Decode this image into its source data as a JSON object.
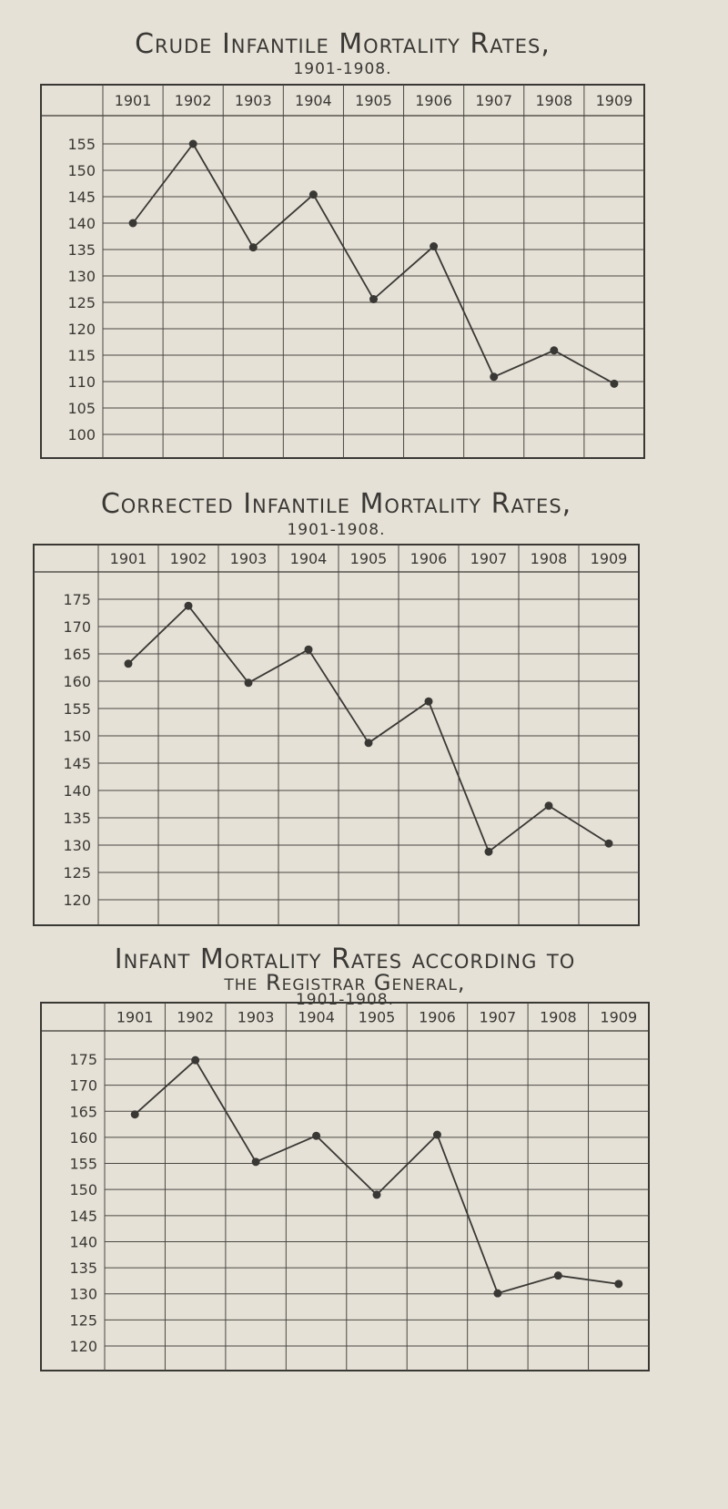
{
  "chart_data": [
    {
      "type": "line",
      "title": "Crude Infantile Mortality Rates,",
      "subtitle": "1901-1908.",
      "categories": [
        "1901",
        "1902",
        "1903",
        "1904",
        "1905",
        "1906",
        "1907",
        "1908",
        "1909"
      ],
      "values": [
        140,
        155,
        135.4,
        145.4,
        125.6,
        135.6,
        110.9,
        115.9,
        109.6
      ],
      "yticks": [
        155,
        150,
        145,
        140,
        135,
        130,
        125,
        120,
        115,
        110,
        105,
        100
      ],
      "ylim": [
        95,
        160
      ],
      "grid": true,
      "line_color": "#3a3835"
    },
    {
      "type": "line",
      "title": "Corrected Infantile Mortality Rates,",
      "subtitle": "1901-1908.",
      "categories": [
        "1901",
        "1902",
        "1903",
        "1904",
        "1905",
        "1906",
        "1907",
        "1908",
        "1909"
      ],
      "values": [
        163.2,
        173.8,
        159.7,
        165.8,
        148.7,
        156.3,
        128.8,
        137.2,
        130.3
      ],
      "yticks": [
        175,
        170,
        165,
        160,
        155,
        150,
        145,
        140,
        135,
        130,
        125,
        120
      ],
      "ylim": [
        115,
        180
      ],
      "grid": true,
      "line_color": "#3a3835"
    },
    {
      "type": "line",
      "title": "Infant Mortality Rates according to",
      "title2": "the Registrar General,",
      "subtitle": "1901-1908.",
      "categories": [
        "1901",
        "1902",
        "1903",
        "1904",
        "1905",
        "1906",
        "1907",
        "1908",
        "1909"
      ],
      "values": [
        164.4,
        174.8,
        155.3,
        160.3,
        149,
        160.5,
        130.1,
        133.5,
        131.9
      ],
      "yticks": [
        175,
        170,
        165,
        160,
        155,
        150,
        145,
        140,
        135,
        130,
        125,
        120
      ],
      "ylim": [
        115,
        180
      ],
      "grid": true,
      "line_color": "#3a3835"
    }
  ]
}
